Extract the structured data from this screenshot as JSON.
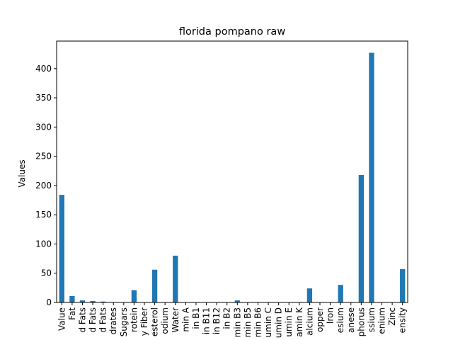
{
  "chart_data": {
    "type": "bar",
    "title": "florida pompano raw",
    "xlabel": "",
    "ylabel": "Values",
    "ylim": [
      0,
      447
    ],
    "yticks": [
      0,
      50,
      100,
      150,
      200,
      250,
      300,
      350,
      400
    ],
    "grid": false,
    "legend": "none",
    "bar_color": "#1f77b4",
    "categories": [
      "Value",
      "Fat",
      "d Fats",
      "d Fats",
      "d Fats",
      "drates",
      "Sugars",
      "rotein",
      "y Fiber",
      "esterol",
      "odium",
      "Water",
      "min A",
      "in B1",
      "in B11",
      "in B12",
      "in B2",
      "min B3",
      "min B5",
      "min B6",
      "umin C",
      "umin D",
      "umin E",
      "amin K",
      "alcium",
      "opper",
      "Iron",
      "esium",
      "anese",
      "phorus",
      "ssium",
      "enium",
      "Zinc",
      "ensity"
    ],
    "values": [
      184,
      11,
      3.5,
      2.5,
      1.5,
      0,
      0,
      21,
      0,
      56,
      0,
      80,
      0,
      0,
      0,
      0,
      0,
      3.5,
      0,
      0,
      0,
      0,
      0,
      0,
      24,
      0,
      0,
      30,
      0,
      218,
      427,
      0,
      0,
      57
    ]
  }
}
